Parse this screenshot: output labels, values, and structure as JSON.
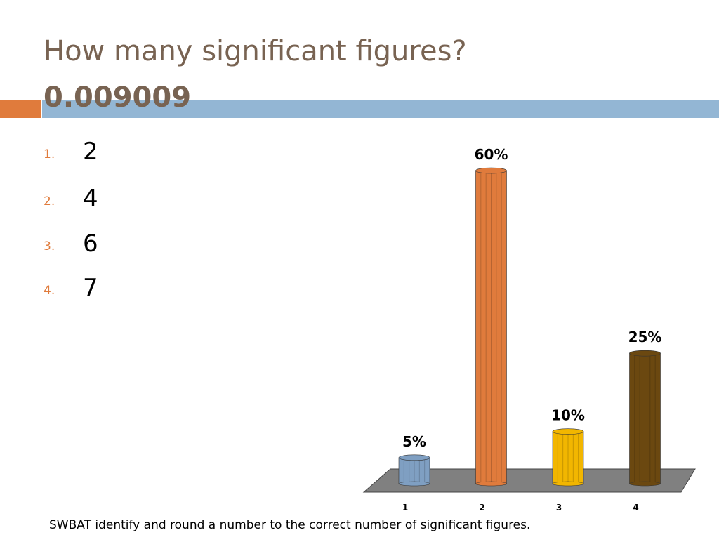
{
  "title": "How many significant figures?",
  "subtitle": "0.009009",
  "list": [
    {
      "marker": "1.",
      "text": "2"
    },
    {
      "marker": "2.",
      "text": "4"
    },
    {
      "marker": "3.",
      "text": "6"
    },
    {
      "marker": "4.",
      "text": "7"
    }
  ],
  "footer": "SWBAT identify and round a number to the correct number of significant figures.",
  "chart_data": {
    "type": "bar",
    "categories": [
      "1",
      "2",
      "3",
      "4"
    ],
    "values": [
      5,
      60,
      10,
      25
    ],
    "value_labels": [
      "5%",
      "60%",
      "10%",
      "25%"
    ],
    "colors": [
      "#7f9fc2",
      "#e07b3c",
      "#f2b600",
      "#6b4810"
    ]
  }
}
